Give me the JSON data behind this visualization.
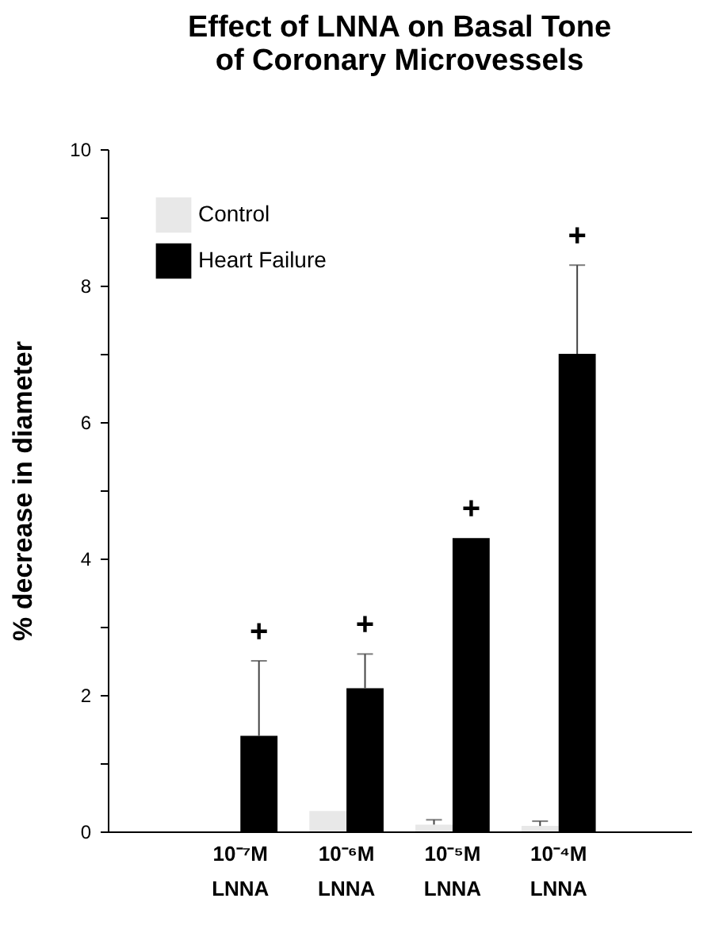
{
  "chart_data": {
    "type": "bar",
    "title": "Effect of LNNA on Basal Tone\nof Coronary Microvessels",
    "ylabel": "% decrease in diameter",
    "categories": [
      "10⁻⁷M\nLNNA",
      "10⁻⁶M\nLNNA",
      "10⁻⁵M\nLNNA",
      "10⁻⁴M\nLNNA"
    ],
    "series": [
      {
        "name": "Control",
        "color": "#e8e8e8",
        "values": [
          0,
          0.3,
          0.1,
          0.08
        ],
        "errors": [
          null,
          null,
          0.07,
          0.07
        ]
      },
      {
        "name": "Heart Failure",
        "color": "#000000",
        "values": [
          1.4,
          2.1,
          4.3,
          7.0
        ],
        "errors": [
          1.1,
          0.5,
          null,
          1.3
        ]
      }
    ],
    "ylim": [
      0,
      10
    ],
    "yticks": [
      0,
      {
        "value": 1,
        "label": null
      },
      2,
      {
        "value": 3,
        "label": null
      },
      4,
      {
        "value": 5,
        "label": null
      },
      6,
      {
        "value": 7,
        "label": null
      },
      8,
      {
        "value": 9,
        "label": null
      },
      10
    ],
    "annotations": [
      "+",
      "+",
      "+",
      "+"
    ],
    "legend": "top left",
    "grid": false
  }
}
